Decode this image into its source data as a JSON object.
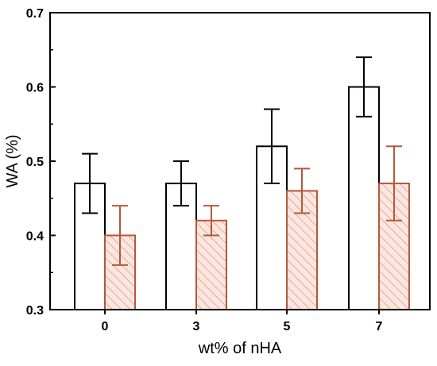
{
  "chart_data": {
    "type": "bar",
    "title": "",
    "xlabel": "wt% of nHA",
    "ylabel": "WA (%)",
    "categories": [
      "0",
      "3",
      "5",
      "7"
    ],
    "ylim": [
      0.3,
      0.7
    ],
    "yticks": [
      "0.3",
      "0.4",
      "0.5",
      "0.6",
      "0.7"
    ],
    "grid": false,
    "legend": "none",
    "series": [
      {
        "style": "open",
        "color": "#000000",
        "values": [
          0.47,
          0.47,
          0.52,
          0.6
        ],
        "err_low": [
          0.43,
          0.44,
          0.47,
          0.56
        ],
        "err_high": [
          0.51,
          0.5,
          0.57,
          0.64
        ]
      },
      {
        "style": "hatched",
        "color": "#b5573a",
        "fill": "#fbe6e0",
        "values": [
          0.4,
          0.42,
          0.46,
          0.47
        ],
        "err_low": [
          0.36,
          0.4,
          0.43,
          0.42
        ],
        "err_high": [
          0.44,
          0.44,
          0.49,
          0.52
        ]
      }
    ]
  }
}
